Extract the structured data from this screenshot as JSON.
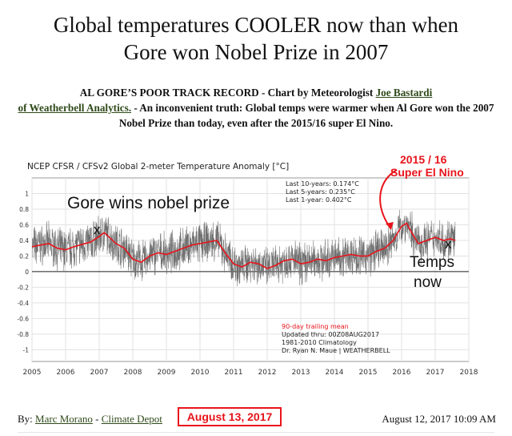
{
  "headline": {
    "line1": "Global temperatures COOLER now than when",
    "line2": "Gore won Nobel Prize in 2007"
  },
  "intro": {
    "part1": "AL GORE’S POOR TRACK RECORD - Chart by Meteorologist ",
    "link1": "Joe Bastardi",
    "link2": "of Weatherbell Analytics.",
    "part2": " - An inconvenient truth: Global temps were warmer when Al Gore won the 2007 Nobel Prize than today, even after the 2015/16 super El Nino."
  },
  "chart_data": {
    "type": "line",
    "title": "NCEP CFSR / CFSv2 Global 2-meter Temperature Anomaly [°C]",
    "xlim": [
      2005,
      2018
    ],
    "ylim": [
      -1.15,
      1.2
    ],
    "x_ticks": [
      "2005",
      "2006",
      "2007",
      "2008",
      "2009",
      "2010",
      "2011",
      "2012",
      "2013",
      "2014",
      "2015",
      "2016",
      "2017",
      "2018"
    ],
    "y_ticks": [
      "1",
      "0.8",
      "0.6",
      "0.4",
      "0.2",
      "0",
      "-0.2",
      "-0.4",
      "-0.6",
      "-0.8",
      "-1"
    ],
    "stats": [
      "Last 10-years: 0.174°C",
      "Last 5-years: 0.235°C",
      "Last 1-year: 0.402°C"
    ],
    "legend": [
      "90-day trailing mean",
      "Updated thru: 00Z08AUG2017",
      "1981-2010 Climatology",
      "Dr. Ryan N. Maue | WEATHERBELL"
    ],
    "annotations": {
      "gore": "Gore wins nobel prize",
      "gore_mark": "x",
      "elnino_1": "2015 / 16",
      "elnino_2": "Super El Nino",
      "temps_mark": "x",
      "temps_1": "Temps",
      "temps_2": "now"
    },
    "series": [
      {
        "name": "90-day trailing mean",
        "color": "#e8141b",
        "x": [
          2005.0,
          2005.25,
          2005.5,
          2005.75,
          2006.0,
          2006.25,
          2006.5,
          2006.75,
          2007.0,
          2007.15,
          2007.3,
          2007.5,
          2007.75,
          2008.0,
          2008.25,
          2008.5,
          2008.75,
          2009.0,
          2009.25,
          2009.5,
          2009.75,
          2010.0,
          2010.25,
          2010.5,
          2010.75,
          2011.0,
          2011.25,
          2011.5,
          2011.75,
          2012.0,
          2012.25,
          2012.5,
          2012.75,
          2013.0,
          2013.25,
          2013.5,
          2013.75,
          2014.0,
          2014.25,
          2014.5,
          2014.75,
          2015.0,
          2015.25,
          2015.5,
          2015.75,
          2016.0,
          2016.15,
          2016.3,
          2016.5,
          2016.75,
          2017.0,
          2017.25,
          2017.45,
          2017.6
        ],
        "y": [
          0.32,
          0.34,
          0.36,
          0.3,
          0.28,
          0.32,
          0.35,
          0.38,
          0.45,
          0.5,
          0.44,
          0.36,
          0.3,
          0.16,
          0.12,
          0.2,
          0.24,
          0.22,
          0.26,
          0.3,
          0.34,
          0.36,
          0.38,
          0.4,
          0.24,
          0.1,
          0.06,
          0.12,
          0.1,
          0.04,
          0.08,
          0.14,
          0.16,
          0.1,
          0.12,
          0.16,
          0.14,
          0.18,
          0.2,
          0.22,
          0.2,
          0.2,
          0.26,
          0.3,
          0.4,
          0.58,
          0.62,
          0.5,
          0.36,
          0.4,
          0.44,
          0.4,
          0.42,
          0.4
        ]
      }
    ]
  },
  "byline": {
    "by": "By: ",
    "author": "Marc Morano",
    "dash": " - ",
    "source": "Climate Depot",
    "date_box": "August 13, 2017",
    "timestamp": "August 12, 2017 10:09 AM"
  }
}
